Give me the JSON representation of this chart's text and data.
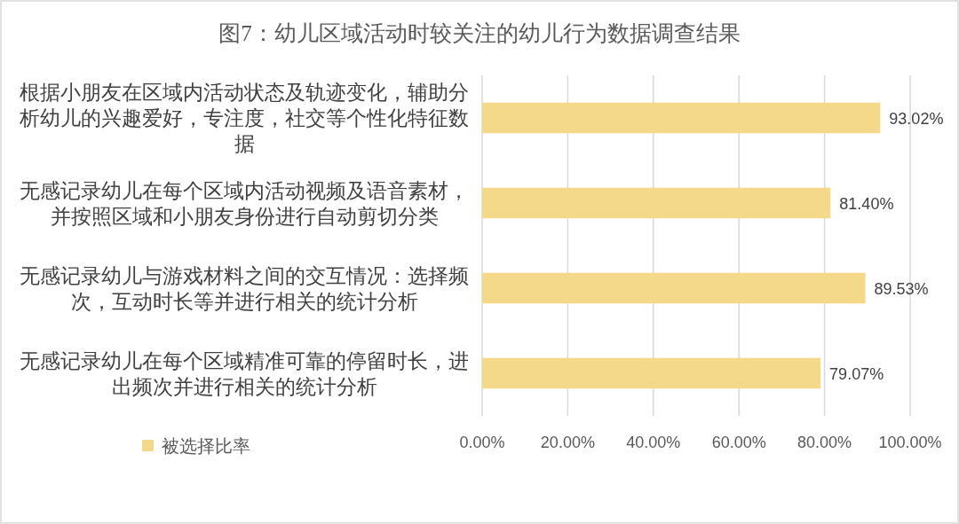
{
  "chart_data": {
    "type": "bar",
    "orientation": "horizontal",
    "title": "图7：幼儿区域活动时较关注的幼儿行为数据调查结果",
    "categories": [
      "根据小朋友在区域内活动状态及轨迹变化，辅助分析幼儿的兴趣爱好，专注度，社交等个性化特征数据",
      "无感记录幼儿在每个区域内活动视频及语音素材，并按照区域和小朋友身份进行自动剪切分类",
      "无感记录幼儿与游戏材料之间的交互情况：选择频次，互动时长等并进行相关的统计分析",
      "无感记录幼儿在每个区域精准可靠的停留时长，进出频次并进行相关的统计分析"
    ],
    "series": [
      {
        "name": "被选择比率",
        "color": "#f5d98a",
        "values": [
          93.02,
          81.4,
          89.53,
          79.07
        ],
        "value_labels": [
          "93.02%",
          "81.40%",
          "89.53%",
          "79.07%"
        ]
      }
    ],
    "xlim": [
      0,
      100
    ],
    "xticks": [
      {
        "value": 0,
        "label": "0.00%"
      },
      {
        "value": 20,
        "label": "20.00%"
      },
      {
        "value": 40,
        "label": "40.00%"
      },
      {
        "value": 60,
        "label": "60.00%"
      },
      {
        "value": 80,
        "label": "80.00%"
      },
      {
        "value": 100,
        "label": "100.00%"
      }
    ],
    "grid": "x",
    "legend": "bottom left"
  }
}
